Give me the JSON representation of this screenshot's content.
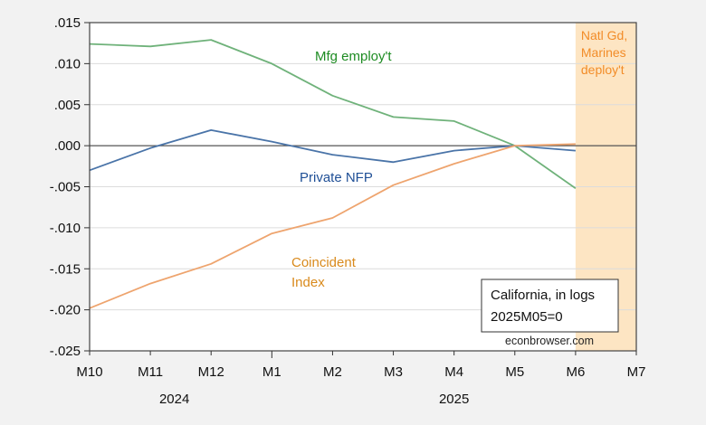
{
  "chart_data": {
    "type": "line",
    "title": "",
    "xlabel": "",
    "ylabel": "",
    "ylim": [
      -0.025,
      0.015
    ],
    "yticks": [
      0.015,
      0.01,
      0.005,
      0.0,
      -0.005,
      -0.01,
      -0.015,
      -0.02,
      -0.025
    ],
    "ytick_labels": [
      ".015",
      ".010",
      ".005",
      ".000",
      "-.005",
      "-.010",
      "-.015",
      "-.020",
      "-.025"
    ],
    "x": [
      "M10",
      "M11",
      "M12",
      "M1",
      "M2",
      "M3",
      "M4",
      "M5",
      "M6",
      "M7"
    ],
    "xtick_labels": [
      "M10",
      "M11",
      "M12",
      "M1",
      "M2",
      "M3",
      "M4",
      "M5",
      "M6",
      "M7"
    ],
    "year_labels": [
      {
        "label": "2024",
        "center_between": [
          "M10",
          "M1"
        ]
      },
      {
        "label": "2025",
        "center_between": [
          "M1",
          "M7"
        ]
      }
    ],
    "grid": true,
    "zero_line": true,
    "series": [
      {
        "name": "Mfg employ't",
        "color": "#6fb27a",
        "label_color": "#1e8c23",
        "values": [
          0.0124,
          0.0121,
          0.0129,
          0.01,
          0.0061,
          0.0035,
          0.003,
          0.0,
          -0.0052,
          null
        ]
      },
      {
        "name": "Private NFP",
        "color": "#4a74a8",
        "label_color": "#1f4f96",
        "values": [
          -0.003,
          -0.0003,
          0.0019,
          0.0005,
          -0.0011,
          -0.002,
          -0.0006,
          0.0,
          -0.0006,
          null
        ]
      },
      {
        "name": "Coincident Index",
        "color": "#eea46e",
        "label_color": "#d98a1c",
        "values": [
          -0.0198,
          -0.0168,
          -0.0144,
          -0.0107,
          -0.0088,
          -0.0048,
          -0.0022,
          0.0,
          0.0002,
          null
        ]
      }
    ],
    "series_labels": [
      {
        "series": 0,
        "lines": [
          "Mfg employ't"
        ]
      },
      {
        "series": 1,
        "lines": [
          "Private NFP"
        ]
      },
      {
        "series": 2,
        "lines": [
          "Coincident",
          "Index"
        ]
      }
    ],
    "shaded_region": {
      "from": "M6",
      "to": "M7",
      "color": "#fde5c3",
      "label_lines": [
        "Natl Gd,",
        "Marines",
        "deploy't"
      ],
      "label_color": "#f28c28"
    },
    "annotation_box": {
      "lines": [
        "California, in logs",
        "2025M05=0"
      ]
    },
    "source": "econbrowser.com"
  }
}
